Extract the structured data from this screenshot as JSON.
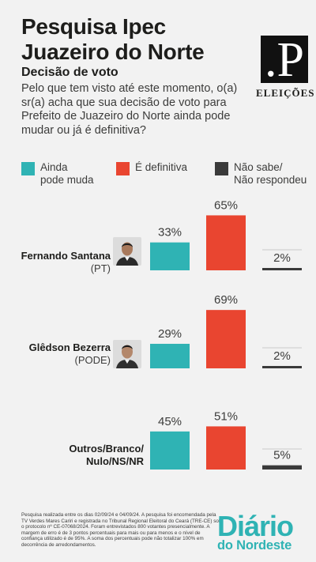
{
  "header": {
    "title_line1": "Pesquisa Ipec",
    "title_line2": "Juazeiro do Norte",
    "subtitle": "Decisão de voto",
    "question": "Pelo que tem visto até este momento, o(a) sr(a) acha que sua decisão de voto para Prefeito de Juazeiro do Norte ainda pode mudar ou já é definitiva?"
  },
  "logo": {
    "mark": ".P",
    "label": "ELEIÇÕES"
  },
  "colors": {
    "teal": "#2fb3b4",
    "red": "#e94530",
    "dark": "#3a3a3a",
    "text": "#1d1d1b"
  },
  "legend": [
    {
      "label": "Ainda\npode muda",
      "color": "#2fb3b4"
    },
    {
      "label": "É definitiva",
      "color": "#e94530"
    },
    {
      "label": "Não sabe/\nNão respondeu",
      "color": "#3a3a3a"
    }
  ],
  "candidates": [
    {
      "name": "Fernando Santana",
      "party": "(PT)",
      "avatar_icon": "person-photo-icon"
    },
    {
      "name": "Glêdson Bezerra",
      "party": "(PODE)",
      "avatar_icon": "person-photo-icon"
    },
    {
      "name": "Outros/Branco/\nNulo/NS/NR",
      "party": "",
      "avatar_icon": ""
    }
  ],
  "chart_data": {
    "type": "bar",
    "categories": [
      "Fernando Santana (PT)",
      "Glêdson Bezerra (PODE)",
      "Outros/Branco/Nulo/NS/NR"
    ],
    "series": [
      {
        "name": "Ainda pode muda",
        "values": [
          33,
          29,
          45
        ]
      },
      {
        "name": "É definitiva",
        "values": [
          65,
          69,
          51
        ]
      },
      {
        "name": "Não sabe/Não respondeu",
        "values": [
          2,
          2,
          5
        ]
      }
    ],
    "value_suffix": "%",
    "ylim": [
      0,
      100
    ],
    "legend_position": "top",
    "grid": false
  },
  "footer": {
    "note": "Pesquisa realizada entre os dias 02/09/24 e 04/09/24. A pesquisa foi encomendada pela TV Verdes Mares Cariri e registrada no Tribunal Regional Eleitoral do Ceará (TRE-CE) sob o protocolo nº CE-07068/2024. Foram entrevistados 800 votantes presencialmente. A margem de erro é de 3 pontos percentuais para mais ou para menos e o nível de confiança utilizado é de 95%. A soma dos percentuais pode não totalizar 100% em decorrência de arredondamentos.",
    "brand_line1": "Diário",
    "brand_line2": "do Nordeste"
  }
}
